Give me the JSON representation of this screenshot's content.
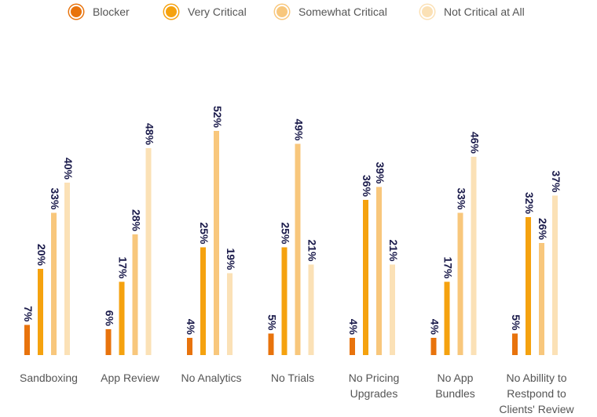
{
  "chart_data": {
    "type": "bar",
    "title": "",
    "xlabel": "",
    "ylabel": "",
    "ylim": [
      0,
      55
    ],
    "grid": false,
    "legend_position": "top",
    "categories": [
      [
        "Sandboxing"
      ],
      [
        "App Review"
      ],
      [
        "No Analytics"
      ],
      [
        "No Trials"
      ],
      [
        "No Pricing",
        "Upgrades"
      ],
      [
        "No App",
        "Bundles"
      ],
      [
        "No Abillity to",
        "Restpond to",
        "Clients' Review"
      ]
    ],
    "series": [
      {
        "name": "Blocker",
        "color": "#e8730c",
        "values": [
          7,
          6,
          4,
          5,
          4,
          4,
          5
        ]
      },
      {
        "name": "Very Critical",
        "color": "#f5a20f",
        "values": [
          20,
          17,
          25,
          25,
          36,
          17,
          32
        ]
      },
      {
        "name": "Somewhat Critical",
        "color": "#f8c77c",
        "values": [
          33,
          28,
          52,
          49,
          39,
          33,
          26
        ]
      },
      {
        "name": "Not Critical at All",
        "color": "#fbe1b6",
        "values": [
          40,
          48,
          19,
          21,
          21,
          46,
          37
        ]
      }
    ],
    "value_suffix": "%"
  },
  "colors": {
    "label_text": "#1b1b4b",
    "axis_text": "#555555",
    "baseline": "#d6d6d6"
  }
}
